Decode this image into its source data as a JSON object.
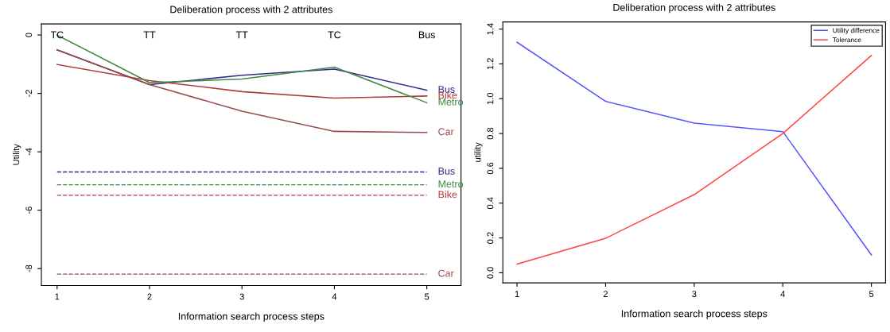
{
  "chart_data": [
    {
      "type": "line",
      "title": "Deliberation process with 2 attributes",
      "xlabel": "Information search process steps",
      "ylabel": "Utility",
      "x": [
        1,
        2,
        3,
        4,
        5
      ],
      "xlim": [
        0.83,
        5.37
      ],
      "xticks": [
        1,
        2,
        3,
        4,
        5
      ],
      "ylim": [
        -8.58,
        0.38
      ],
      "yticks": [
        0,
        -2,
        -4,
        -6,
        -8
      ],
      "series": [
        {
          "name": "Bus",
          "color": "#2e2e8a",
          "values": [
            -0.51,
            -1.7,
            -1.38,
            -1.17,
            -1.89
          ]
        },
        {
          "name": "Bike",
          "color": "#b03a3a",
          "values": [
            -1.01,
            -1.56,
            -1.94,
            -2.16,
            -2.09
          ]
        },
        {
          "name": "Metro",
          "color": "#3f8a3f",
          "values": [
            0,
            -1.63,
            -1.51,
            -1.1,
            -2.32
          ]
        },
        {
          "name": "Car",
          "color": "#9a4a4a",
          "values": [
            -0.51,
            -1.7,
            -2.61,
            -3.3,
            -3.34
          ]
        }
      ],
      "ref_lines": [
        {
          "axis": "y",
          "value": -4.69,
          "label": "Bus",
          "color": "#2e2e8a",
          "line_style": "dashed"
        },
        {
          "axis": "y",
          "value": -5.13,
          "label": "Metro",
          "color": "#3f8a3f",
          "line_style": "dashed"
        },
        {
          "axis": "y",
          "value": -5.49,
          "label": "Bike",
          "color": "#b03a3a",
          "line_style": "dashed"
        },
        {
          "axis": "y",
          "value": -8.19,
          "label": "Car",
          "color": "#9a4a4a",
          "line_style": "dashed"
        }
      ],
      "annotations": [
        "TC",
        "TT",
        "TT",
        "TC",
        "Bus"
      ],
      "grid": false,
      "legend": false,
      "line_style": "solid",
      "marker": "none"
    },
    {
      "type": "line",
      "title": "Deliberation process with 2 attributes",
      "xlabel": "Information search process steps",
      "ylabel": "utility",
      "x": [
        1,
        2,
        3,
        4,
        5
      ],
      "xlim": [
        0.84,
        5.16
      ],
      "xticks": [
        1,
        2,
        3,
        4,
        5
      ],
      "ylim": [
        -0.058,
        1.441
      ],
      "yticks": [
        {
          "value": 0,
          "label": "0.0"
        },
        0.2,
        0.4,
        0.6,
        0.8,
        {
          "value": 1,
          "label": "1.0"
        },
        1.2,
        1.4
      ],
      "series": [
        {
          "name": "Utility difference",
          "color": "#5555ff",
          "values": [
            1.324,
            0.985,
            0.86,
            0.811,
            0.103
          ]
        },
        {
          "name": "Tolerance",
          "color": "#ff4444",
          "values": [
            0.05,
            0.198,
            0.449,
            0.8,
            1.248
          ]
        }
      ],
      "grid": false,
      "legend": "top right",
      "line_style": "solid",
      "marker": "none"
    }
  ]
}
